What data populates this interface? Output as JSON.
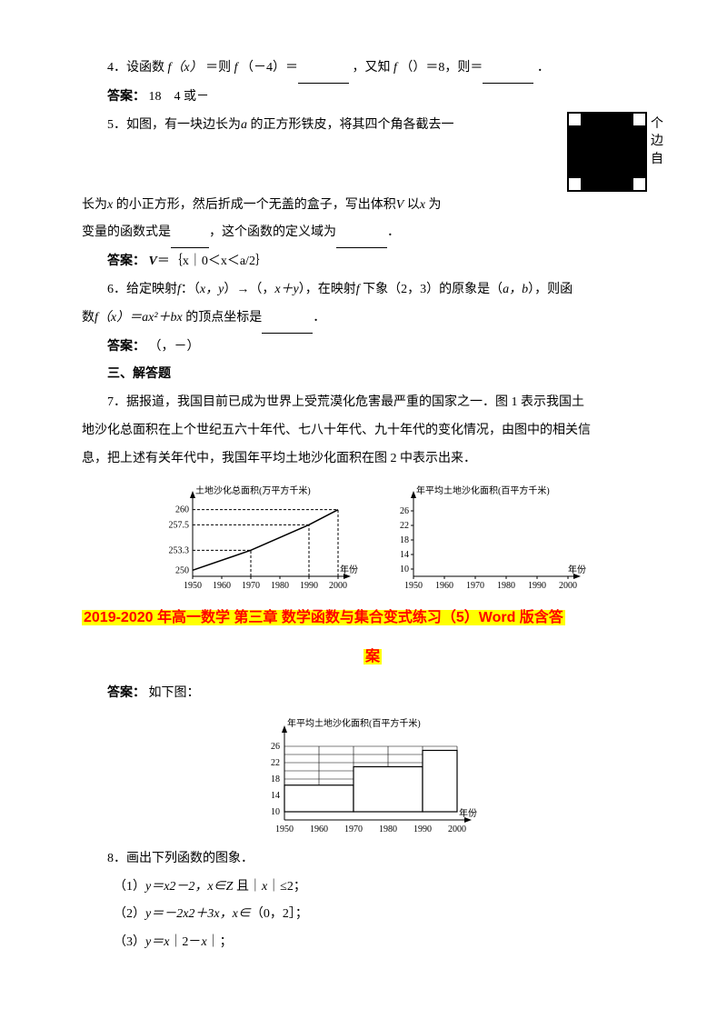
{
  "q4": {
    "text_a": "4．设函数",
    "text_b": "＝则",
    "text_c": "（－4）＝",
    "text_d": "，又知",
    "text_e": "（）＝8，则＝",
    "text_f": "．",
    "func": "f",
    "arg": "（x）",
    "ans_label": "答案：",
    "ans": "18　4 或－"
  },
  "q5": {
    "t1": "5．如图，有一块边长为",
    "a": "a",
    "t2": " 的正方形铁皮，将其四个角各截去一",
    "side1": "个",
    "side2": "边",
    "side3": "自",
    "t3": "长为",
    "x": "x",
    "t4": " 的小正方形，然后折成一个无盖的盒子，写出体积",
    "v": "V",
    "t5": " 以",
    "t6": " 为",
    "t7": "变量的函数式是",
    "t8": "，这个函数的定义域为",
    "t9": "．",
    "ans_label": "答案：",
    "ans_v": "V",
    "ans_eq": "＝｛x｜0＜x＜a/2｝"
  },
  "q6": {
    "t1": "6．给定映射",
    "f": "f",
    "t2": "：（",
    "xy": "x，y",
    "t3": "）→（，",
    "xpy": "x＋y",
    "t4": "），在映射",
    "t5": " 下象（2，3）的原象是（",
    "ab": "a，b",
    "t6": "），则函",
    "t7": "数",
    "fx": "f（x）＝ax²＋bx",
    "t8": " 的顶点坐标是",
    "t9": "．",
    "ans_label": "答案：",
    "ans": "（，－）"
  },
  "section3": "三、解答题",
  "q7": {
    "t1": "7．据报道，我国目前已成为世界上受荒漠化危害最严重的国家之一．图 1 表示我国土",
    "t2": "地沙化总面积在上个世纪五六十年代、七八十年代、九十年代的变化情况，由图中的相关信",
    "t3": "息，把上述有关年代中，我国年平均土地沙化面积在图 2 中表示出来．",
    "chart1": {
      "ylabel": "土地沙化总面积(万平方千米)",
      "xlabel": "年份",
      "yticks": [
        "260",
        "257.5",
        "253.3",
        "250"
      ],
      "ytick_vals": [
        260,
        257.5,
        253.3,
        250
      ],
      "xticks": [
        "1950",
        "1960",
        "1970",
        "1980",
        "1990",
        "2000"
      ],
      "xtick_vals": [
        1950,
        1960,
        1970,
        1980,
        1990,
        2000
      ],
      "points": [
        [
          1950,
          250
        ],
        [
          1970,
          253.3
        ],
        [
          1990,
          257.5
        ],
        [
          2000,
          260
        ]
      ],
      "line_color": "#000000"
    },
    "chart2": {
      "ylabel": "年平均土地沙化面积(百平方千米)",
      "xlabel": "年份",
      "yticks": [
        "26",
        "22",
        "18",
        "14",
        "10"
      ],
      "ytick_vals": [
        26,
        22,
        18,
        14,
        10
      ],
      "xticks": [
        "1950",
        "1960",
        "1970",
        "1980",
        "1990",
        "2000"
      ],
      "xtick_vals": [
        1950,
        1960,
        1970,
        1980,
        1990,
        2000
      ]
    }
  },
  "title": {
    "line1": "2019-2020 年高一数学 第三章 数学函数与集合变式练习（5）Word 版含答",
    "line2": "案"
  },
  "ans7": {
    "label": "答案：",
    "text": "如下图：",
    "chart": {
      "ylabel": "年平均土地沙化面积(百平方千米)",
      "xlabel": "年份",
      "yticks": [
        "26",
        "22",
        "18",
        "14",
        "10"
      ],
      "ytick_vals": [
        26,
        22,
        18,
        14,
        10
      ],
      "xticks": [
        "1950",
        "1960",
        "1970",
        "1980",
        "1990",
        "2000"
      ],
      "xtick_vals": [
        1950,
        1960,
        1970,
        1980,
        1990,
        2000
      ],
      "bars": [
        {
          "x0": 1950,
          "x1": 1970,
          "v": 16.5
        },
        {
          "x0": 1970,
          "x1": 1990,
          "v": 21
        },
        {
          "x0": 1990,
          "x1": 2000,
          "v": 25
        }
      ],
      "grid_color": "#000000",
      "bar_color": "#ffffff"
    }
  },
  "q8": {
    "t1": "8．画出下列函数的图象．",
    "i1a": "（1）",
    "i1b": "y＝x2－2，x∈Z",
    "i1c": " 且｜",
    "i1d": "x",
    "i1e": "｜≤2；",
    "i2a": "（2）",
    "i2b": "y＝－2x2＋3x，x∈",
    "i2c": "（0，2］；",
    "i3a": "（3）",
    "i3b": "y＝x",
    "i3c": "｜2－",
    "i3d": "x",
    "i3e": "｜；"
  }
}
